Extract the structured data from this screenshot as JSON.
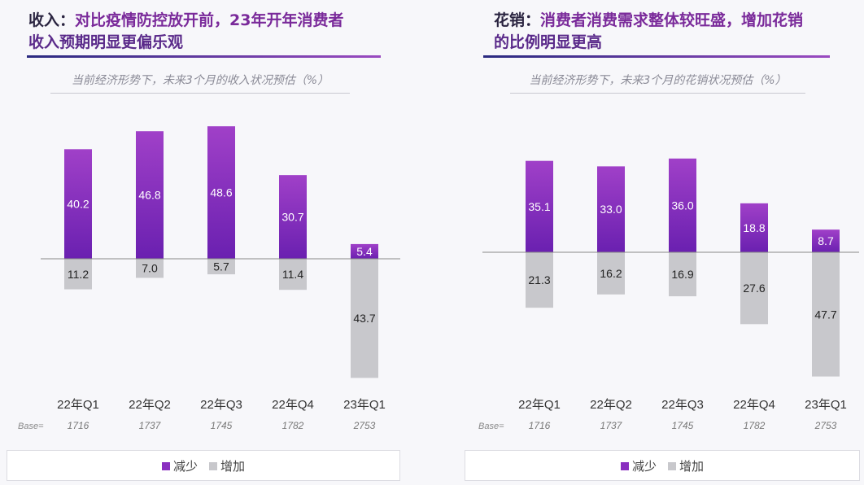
{
  "chart_data": [
    {
      "type": "bar",
      "title_lead": "收入：",
      "title_rest": "对比疫情防控放开前，23年开年消费者",
      "title_line2": "收入预期明显更偏乐观",
      "subtitle": "当前经济形势下，未来3个月的收入状况预估（%）",
      "categories": [
        "22年Q1",
        "22年Q2",
        "22年Q3",
        "22年Q4",
        "23年Q1"
      ],
      "base_label": "Base=",
      "bases": [
        "1716",
        "1737",
        "1745",
        "1782",
        "2753"
      ],
      "series": [
        {
          "name": "减少",
          "direction": "up",
          "color": "#8a2fc0",
          "values": [
            40.2,
            46.8,
            48.6,
            30.7,
            5.4
          ]
        },
        {
          "name": "增加",
          "direction": "down",
          "color": "#c8c8cc",
          "values": [
            11.2,
            7.0,
            5.7,
            11.4,
            43.7
          ]
        }
      ],
      "legend": "bottom"
    },
    {
      "type": "bar",
      "title_lead": "花销：",
      "title_rest": "消费者消费需求整体较旺盛，增加花销",
      "title_line2": "的比例明显更高",
      "subtitle": "当前经济形势下，未来3个月的花销状况预估（%）",
      "categories": [
        "22年Q1",
        "22年Q2",
        "22年Q3",
        "22年Q4",
        "23年Q1"
      ],
      "base_label": "Base=",
      "bases": [
        "1716",
        "1737",
        "1745",
        "1782",
        "2753"
      ],
      "series": [
        {
          "name": "减少",
          "direction": "up",
          "color": "#8a2fc0",
          "values": [
            35.1,
            33.0,
            36.0,
            18.8,
            8.7
          ]
        },
        {
          "name": "增加",
          "direction": "down",
          "color": "#c8c8cc",
          "values": [
            21.3,
            16.2,
            16.9,
            27.6,
            47.7
          ]
        }
      ],
      "legend": "bottom"
    }
  ]
}
